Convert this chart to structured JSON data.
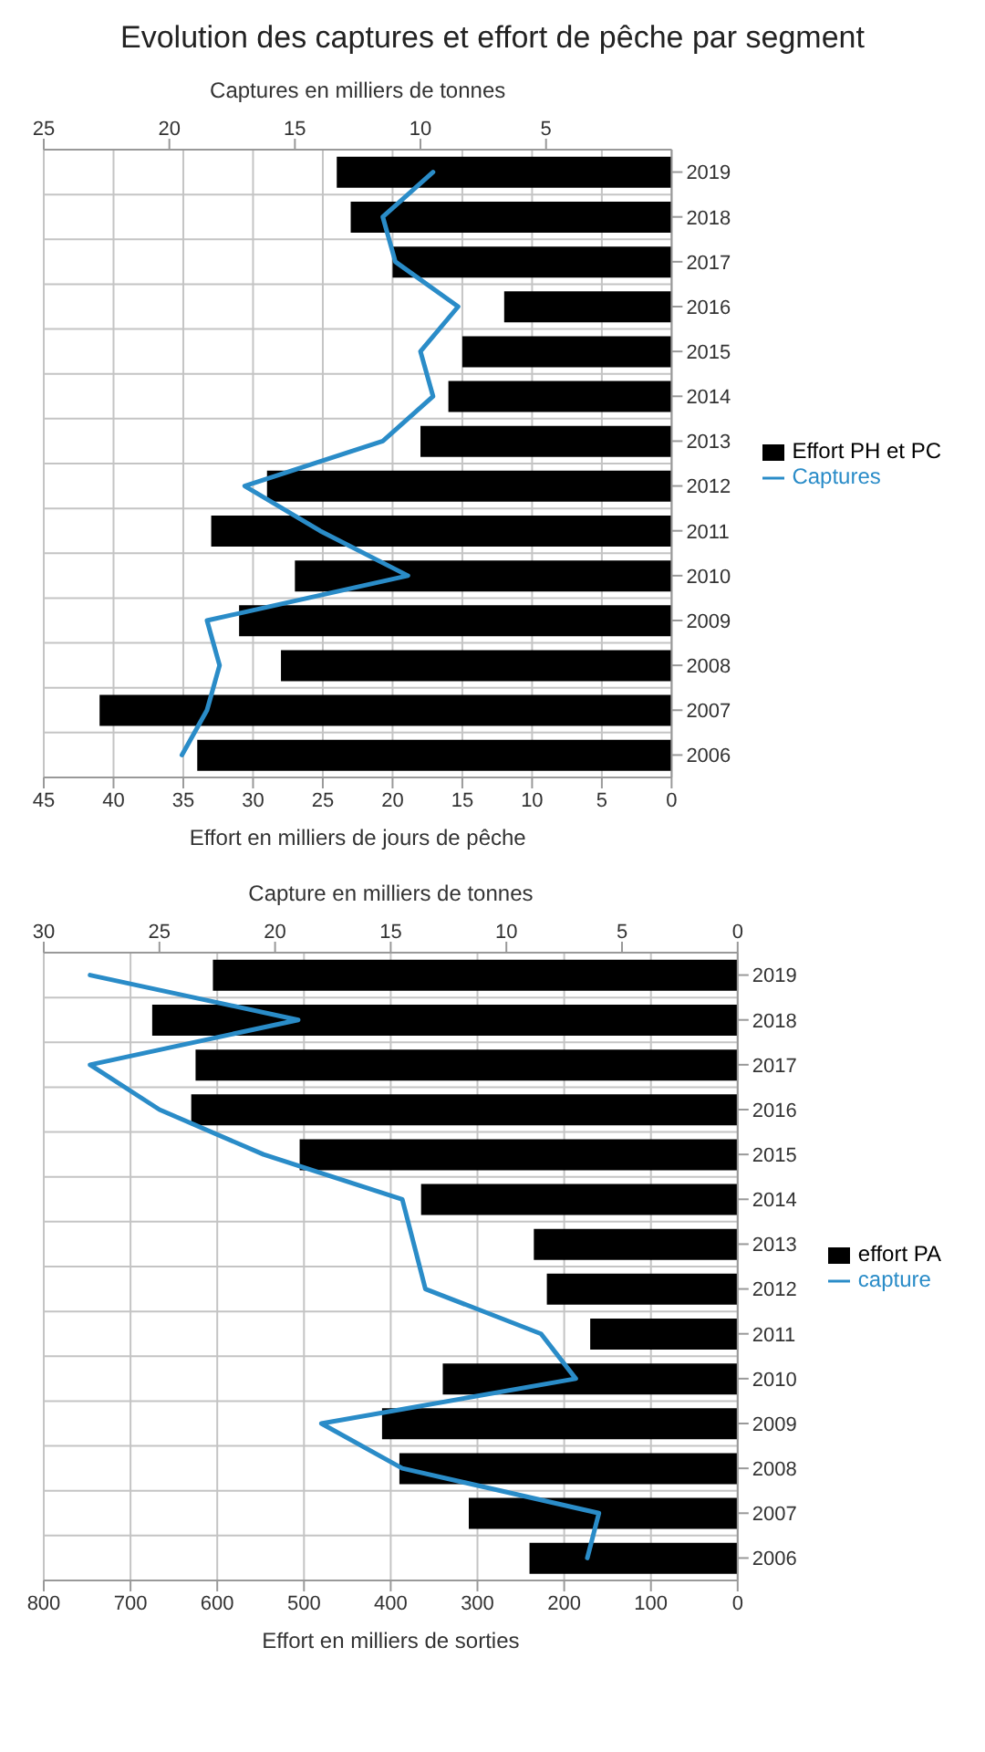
{
  "chart_data": [
    {
      "type": "bar",
      "orientation": "horizontal",
      "title": "Evolution des captures et effort de pêche par segment",
      "categories": [
        "2019",
        "2018",
        "2017",
        "2016",
        "2015",
        "2014",
        "2013",
        "2012",
        "2011",
        "2010",
        "2009",
        "2008",
        "2007",
        "2006"
      ],
      "series": [
        {
          "name": "Effort PH et PC",
          "color": "#000000",
          "values": [
            24,
            23,
            20,
            12,
            15,
            16,
            18,
            29,
            33,
            27,
            31,
            28,
            41,
            34
          ]
        },
        {
          "name": "Captures",
          "type": "line",
          "axis": "x2",
          "color": "#2a8cc8",
          "values": [
            9.5,
            11.5,
            11,
            8.5,
            10,
            9.5,
            11.5,
            17,
            14,
            10.5,
            18.5,
            18,
            18.5,
            19.5
          ]
        }
      ],
      "xlabel": "Effort en milliers de jours de pêche",
      "x2label": "Captures en milliers de tonnes",
      "xlim": [
        45,
        0
      ],
      "xticks": [
        0,
        5,
        10,
        15,
        20,
        25,
        30,
        35,
        40,
        45
      ],
      "x2lim": [
        25,
        0
      ],
      "x2ticks": [
        5,
        10,
        15,
        20,
        25
      ],
      "grid": true,
      "legend": "right",
      "marker": "none"
    },
    {
      "type": "bar",
      "orientation": "horizontal",
      "categories": [
        "2019",
        "2018",
        "2017",
        "2016",
        "2015",
        "2014",
        "2013",
        "2012",
        "2011",
        "2010",
        "2009",
        "2008",
        "2007",
        "2006"
      ],
      "series": [
        {
          "name": "effort PA",
          "color": "#000000",
          "values": [
            605,
            675,
            625,
            630,
            505,
            365,
            235,
            220,
            170,
            340,
            410,
            390,
            310,
            240
          ]
        },
        {
          "name": "capture",
          "type": "line",
          "axis": "x2",
          "color": "#2a8cc8",
          "values": [
            28,
            19,
            28,
            25,
            20.5,
            14.5,
            14,
            13.5,
            8.5,
            7,
            18,
            14.5,
            6,
            6.5
          ]
        }
      ],
      "xlabel": "Effort en milliers de sorties",
      "x2label": "Capture en milliers de tonnes",
      "xlim": [
        800,
        0
      ],
      "xticks": [
        0,
        100,
        200,
        300,
        400,
        500,
        600,
        700,
        800
      ],
      "x2lim": [
        30,
        0
      ],
      "x2ticks": [
        0,
        5,
        10,
        15,
        20,
        25,
        30
      ],
      "grid": true,
      "legend": "right",
      "marker": "none"
    }
  ]
}
